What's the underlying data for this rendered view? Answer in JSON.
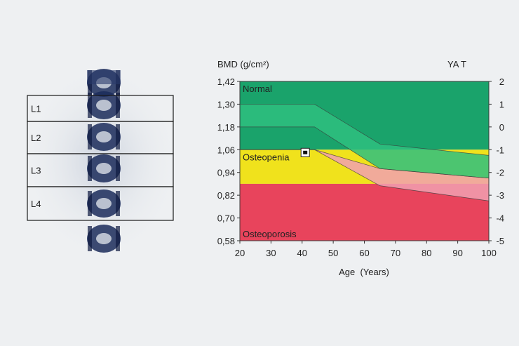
{
  "spine_scan": {
    "vertebrae": [
      "L1",
      "L2",
      "L3",
      "L4"
    ]
  },
  "chart_data": {
    "type": "area",
    "title": "",
    "ylabel_left": "BMD (g/cm²)",
    "ylabel_right": "YA T",
    "xlabel": "Age  (Years)",
    "xlim": [
      20,
      100
    ],
    "ylim": [
      0.58,
      1.42
    ],
    "x_ticks": [
      "20",
      "30",
      "40",
      "50",
      "60",
      "70",
      "80",
      "90",
      "100"
    ],
    "y_ticks_left": [
      "0,58",
      "0,70",
      "0,82",
      "0,94",
      "1,06",
      "1,18",
      "1,30",
      "1,42"
    ],
    "y_ticks_right": [
      "-5",
      "-4",
      "-3",
      "-2",
      "-1",
      "0",
      "1",
      "2"
    ],
    "zones": [
      {
        "label": "Normal",
        "from": 1.06,
        "to": 1.42,
        "color": "#1aa36b"
      },
      {
        "label": "Osteopenia",
        "from": 0.88,
        "to": 1.06,
        "color": "#f0e21c"
      },
      {
        "label": "Osteoporosis",
        "from": 0.58,
        "to": 0.88,
        "color": "#e8445c"
      }
    ],
    "reference_bands": [
      {
        "x": [
          20,
          44,
          65,
          100
        ],
        "upper": [
          1.3,
          1.3,
          1.09,
          1.03
        ],
        "lower": [
          1.18,
          1.18,
          0.96,
          0.91
        ],
        "color": "#2fc07f"
      },
      {
        "x": [
          20,
          44,
          65,
          100
        ],
        "upper": [
          1.06,
          1.06,
          0.96,
          0.91
        ],
        "lower": [
          1.06,
          1.06,
          0.87,
          0.79
        ],
        "color": "#f1a0b0"
      }
    ],
    "patient_point": {
      "x": 41,
      "y": 1.06
    },
    "grid": false
  }
}
